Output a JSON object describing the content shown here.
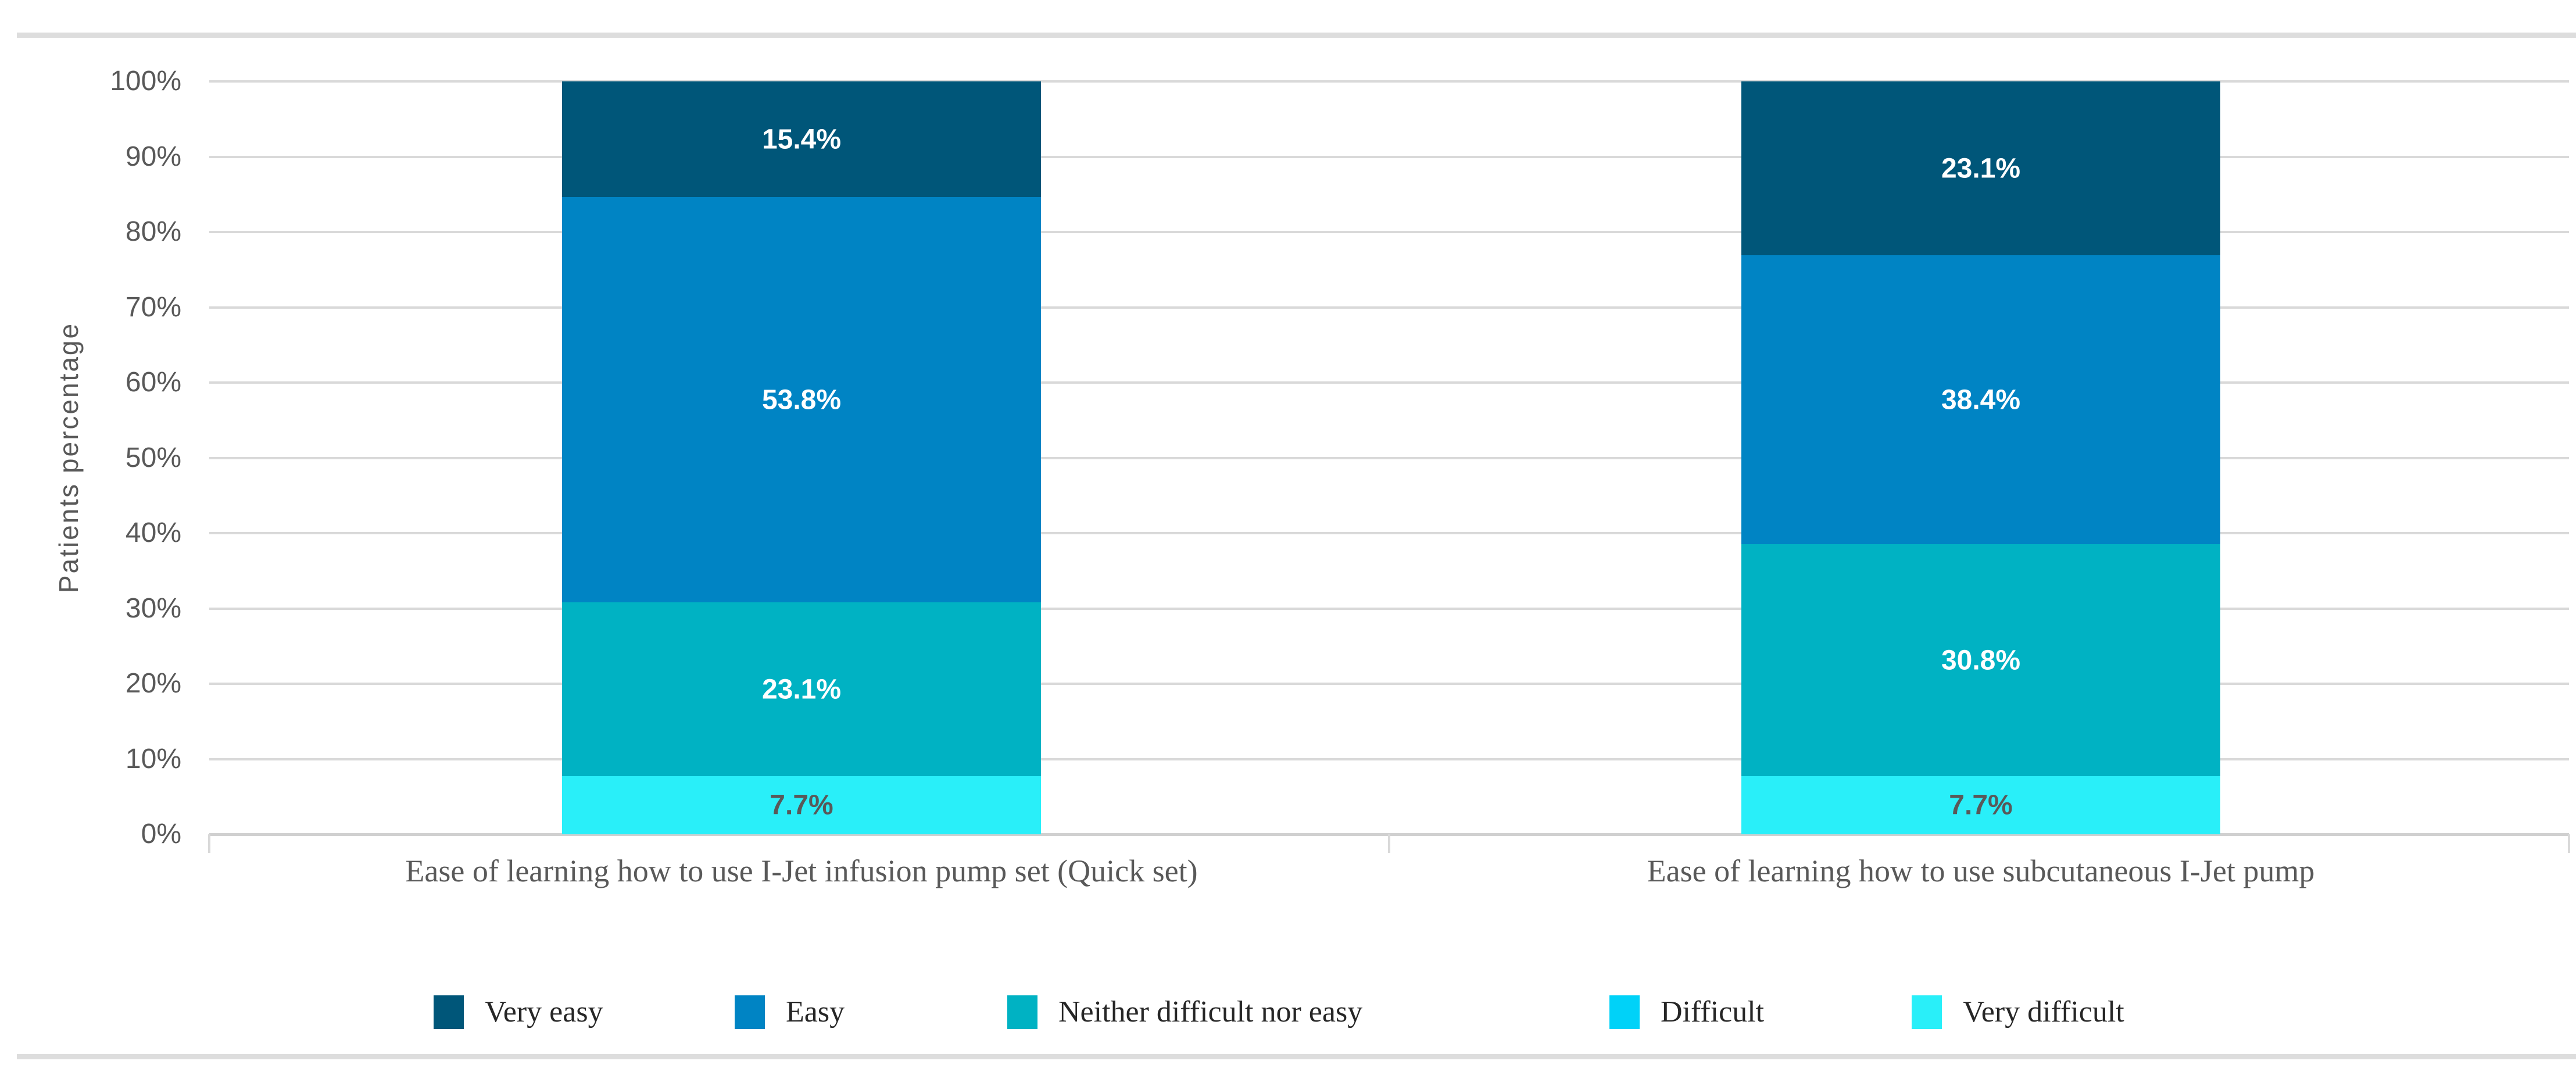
{
  "chart_data": {
    "type": "bar",
    "stacked": true,
    "percent_stacked": true,
    "title": "",
    "ylabel": "Patients percentage",
    "ylim": [
      0,
      100
    ],
    "ytick_labels": [
      "100%",
      "90%",
      "80%",
      "70%",
      "60%",
      "50%",
      "40%",
      "30%",
      "20%",
      "10%",
      "0%"
    ],
    "categories": [
      "Ease of learning how to use I-Jet infusion pump set (Quick set)",
      "Ease of learning how to use subcutaneous I-Jet pump"
    ],
    "series": [
      {
        "name": "Very easy",
        "color": "#005679",
        "label_color": "#FFFFFF",
        "values": [
          15.4,
          23.1
        ]
      },
      {
        "name": "Easy",
        "color": "#0084C4",
        "label_color": "#FFFFFF",
        "values": [
          53.8,
          38.4
        ]
      },
      {
        "name": "Neither difficult nor easy",
        "color": "#00B2C3",
        "label_color": "#FFFFFF",
        "values": [
          23.1,
          30.8
        ]
      },
      {
        "name": "Difficult",
        "color": "#00D2F8",
        "label_color": "#595959",
        "values": [
          0,
          0
        ]
      },
      {
        "name": "Very difficult",
        "color": "#29EFF9",
        "label_color": "#595959",
        "values": [
          7.7,
          7.7
        ]
      }
    ],
    "data_label_format": "0.0%",
    "grid": true,
    "legend_position": "bottom",
    "colors": {
      "gridline": "#D9D9D9",
      "axis_line": "#D0D0D0",
      "axis_text": "#595959",
      "category_text": "#595959",
      "legend_text": "#262626",
      "figure_border": "#DDDDDD",
      "background": "#FFFFFF"
    }
  }
}
